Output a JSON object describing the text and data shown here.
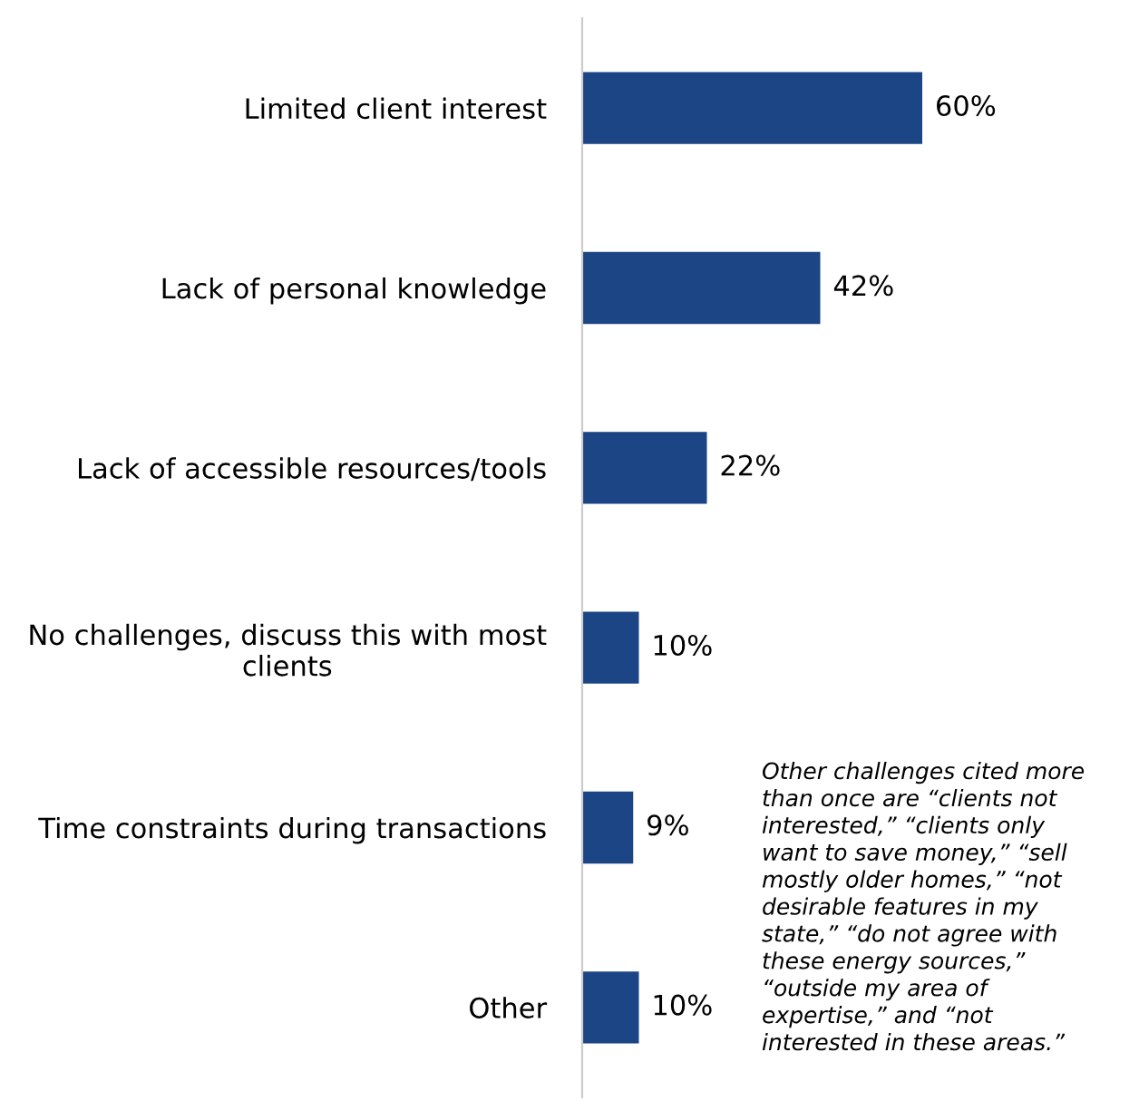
{
  "chart_data": {
    "type": "bar",
    "orientation": "horizontal",
    "categories": [
      "Limited client interest",
      "Lack of personal knowledge",
      "Lack of accessible resources/tools",
      "No challenges, discuss this with most clients",
      "Time constraints during transactions",
      "Other"
    ],
    "values": [
      60,
      42,
      22,
      10,
      9,
      10
    ],
    "value_labels": [
      "60%",
      "42%",
      "22%",
      "10%",
      "9%",
      "10%"
    ],
    "color": "#1b4584",
    "tick_labels": "y",
    "annotations": [
      "Other challenges cited more than once are “clients not interested,” “clients only want to save money,” “sell mostly older homes,” “not desirable features in my state,” “do not agree with these energy sources,” “outside my area of expertise,” and “not interested in these areas.”"
    ]
  }
}
